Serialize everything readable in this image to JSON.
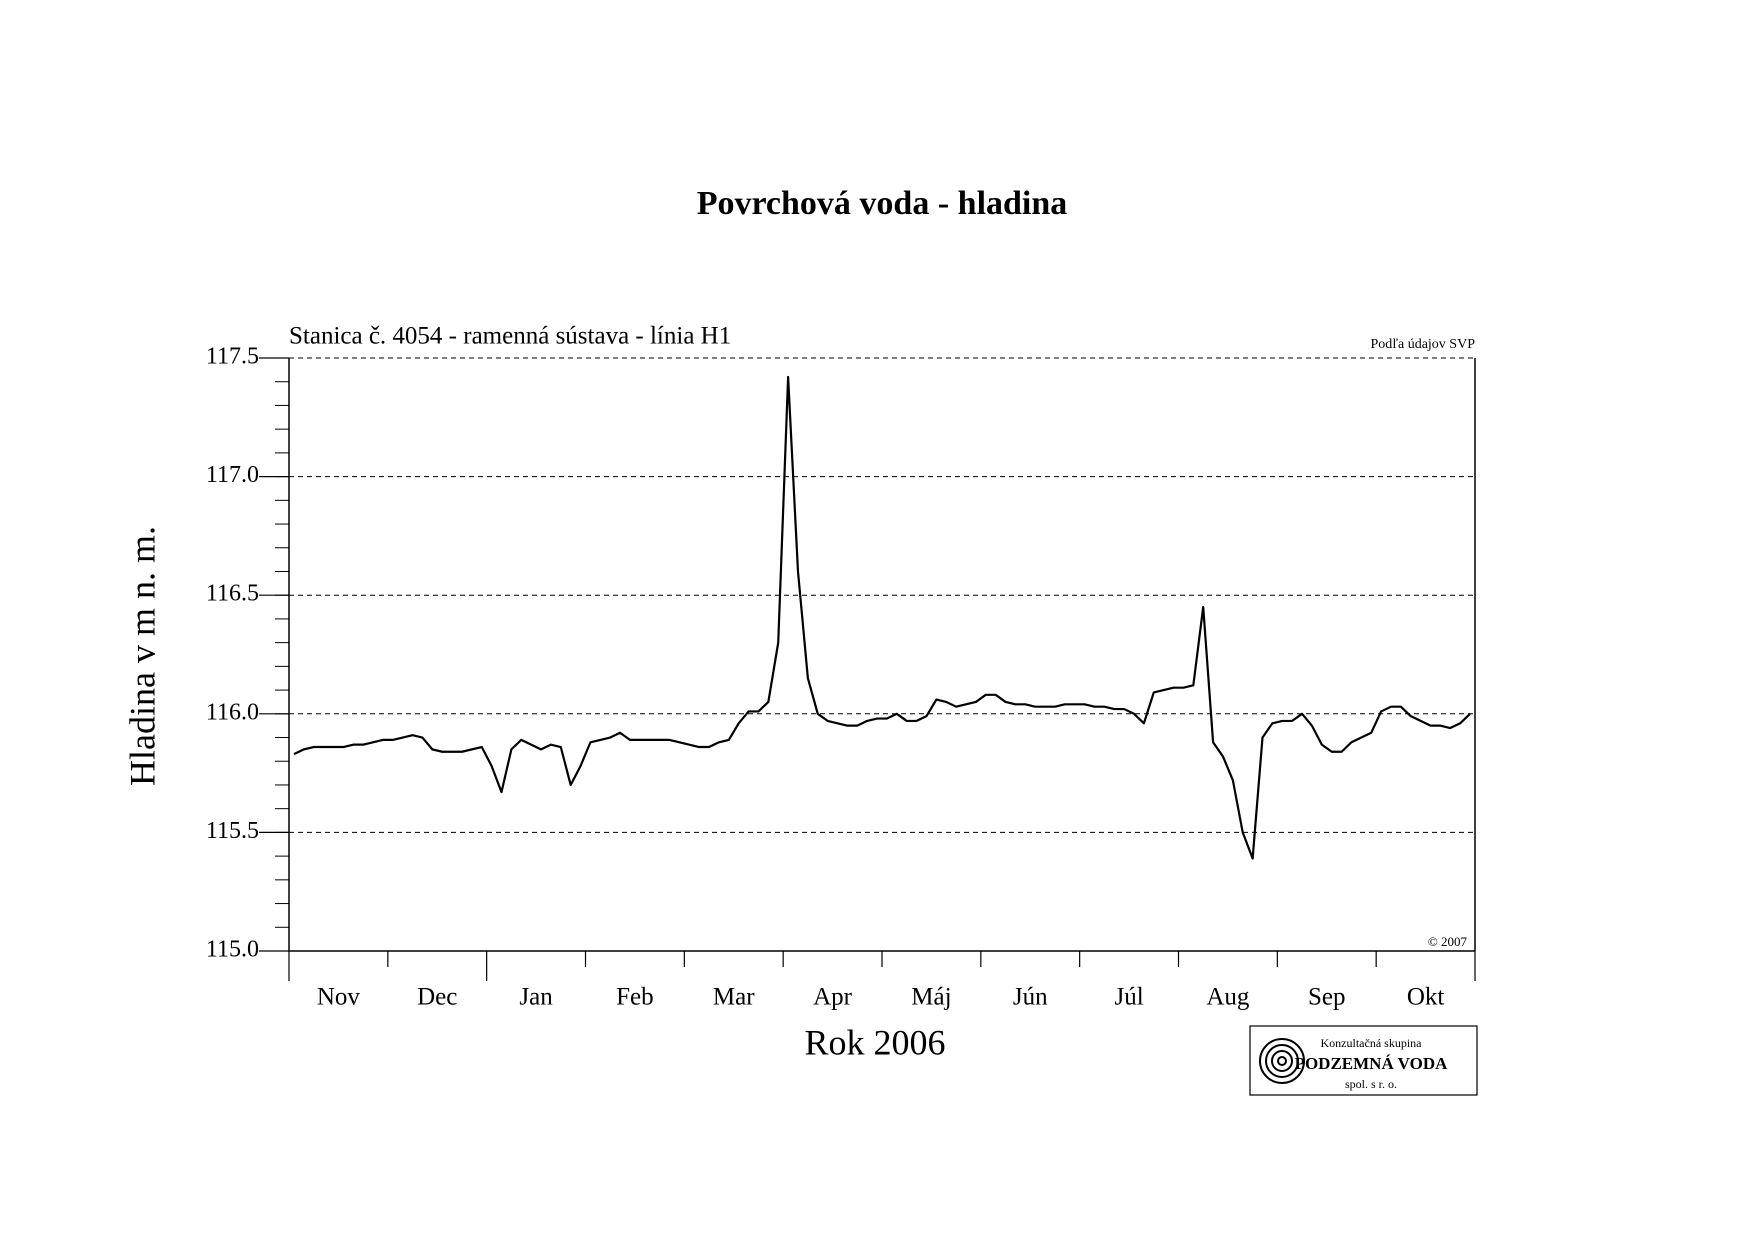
{
  "chart_data": {
    "type": "line",
    "title": "Povrchová voda - hladina",
    "subtitle": "Stanica č. 4054 - ramenná sústava - línia H1",
    "source_note": "Podľa údajov SVP",
    "copyright": "© 2007",
    "y_label": "Hladina v m n. m.",
    "x_label": "Rok 2006",
    "logo": {
      "line1": "Konzultačná skupina",
      "line2": "PODZEMNÁ VODA",
      "line3": "spol. s r. o."
    },
    "categories": [
      null,
      null,
      null,
      null,
      null,
      "Nov",
      null,
      null,
      null,
      null,
      null,
      null,
      null,
      null,
      null,
      "Dec",
      null,
      null,
      null,
      null,
      null,
      null,
      null,
      null,
      null,
      "Jan",
      null,
      null,
      null,
      null,
      null,
      null,
      null,
      null,
      null,
      "Feb",
      null,
      null,
      null,
      null,
      null,
      null,
      null,
      null,
      null,
      "Mar",
      null,
      null,
      null,
      null,
      null,
      null,
      null,
      null,
      null,
      "Apr",
      null,
      null,
      null,
      null,
      null,
      null,
      null,
      null,
      null,
      "Máj",
      null,
      null,
      null,
      null,
      null,
      null,
      null,
      null,
      null,
      "Jún",
      null,
      null,
      null,
      null,
      null,
      null,
      null,
      null,
      null,
      "Júl",
      null,
      null,
      null,
      null,
      null,
      null,
      null,
      null,
      null,
      "Aug",
      null,
      null,
      null,
      null,
      null,
      null,
      null,
      null,
      null,
      "Sep",
      null,
      null,
      null,
      null,
      null,
      null,
      null,
      null,
      null,
      "Okt",
      null,
      null,
      null,
      null
    ],
    "series": [
      {
        "name": "Hladina",
        "color": "#000000",
        "values": [
          115.83,
          115.85,
          115.86,
          115.86,
          115.86,
          115.86,
          115.87,
          115.87,
          115.88,
          115.89,
          115.89,
          115.9,
          115.91,
          115.9,
          115.85,
          115.84,
          115.84,
          115.84,
          115.85,
          115.86,
          115.78,
          115.67,
          115.85,
          115.89,
          115.87,
          115.85,
          115.87,
          115.86,
          115.7,
          115.78,
          115.88,
          115.89,
          115.9,
          115.92,
          115.89,
          115.89,
          115.89,
          115.89,
          115.89,
          115.88,
          115.87,
          115.86,
          115.86,
          115.88,
          115.89,
          115.96,
          116.01,
          116.01,
          116.05,
          116.3,
          117.42,
          116.6,
          116.15,
          116.0,
          115.97,
          115.96,
          115.95,
          115.95,
          115.97,
          115.98,
          115.98,
          116.0,
          115.97,
          115.97,
          115.99,
          116.06,
          116.05,
          116.03,
          116.04,
          116.05,
          116.08,
          116.08,
          116.05,
          116.04,
          116.04,
          116.03,
          116.03,
          116.03,
          116.04,
          116.04,
          116.04,
          116.03,
          116.03,
          116.02,
          116.02,
          116.0,
          115.96,
          116.09,
          116.1,
          116.11,
          116.11,
          116.12,
          116.45,
          115.88,
          115.82,
          115.72,
          115.5,
          115.39,
          115.9,
          115.96,
          115.97,
          115.97,
          116.0,
          115.95,
          115.87,
          115.84,
          115.84,
          115.88,
          115.9,
          115.92,
          116.01,
          116.03,
          116.03,
          115.99,
          115.97,
          115.95,
          115.95,
          115.94,
          115.96,
          116.0
        ]
      }
    ],
    "ylim": [
      115.0,
      117.5
    ],
    "yticks": [
      {
        "value": 115.0,
        "label": "115.0"
      },
      115.5,
      {
        "value": 116.0,
        "label": "116.0"
      },
      116.5,
      {
        "value": 117.0,
        "label": "117.0"
      },
      117.5
    ],
    "grid": true
  }
}
